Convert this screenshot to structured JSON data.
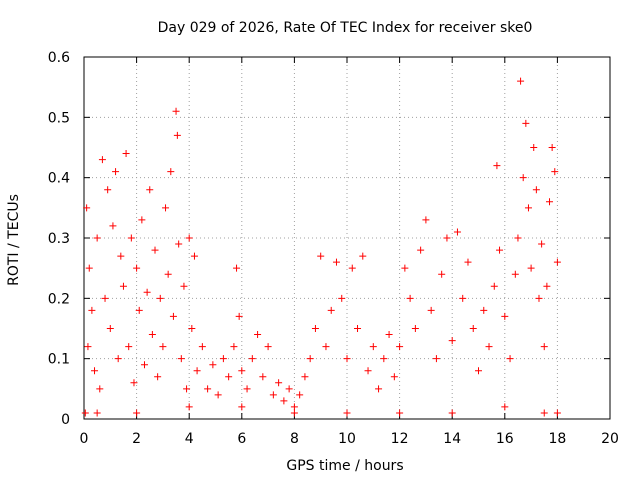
{
  "chart_data": {
    "type": "scatter",
    "title": "Day 029 of 2026, Rate Of TEC Index for receiver ske0",
    "xlabel": "GPS time / hours",
    "ylabel": "ROTI / TECUs",
    "xlim": [
      0,
      20
    ],
    "ylim": [
      0,
      0.6
    ],
    "xticks": [
      "0",
      "2",
      "4",
      "6",
      "8",
      "10",
      "12",
      "14",
      "16",
      "18",
      "20"
    ],
    "yticks": [
      "0",
      "0.1",
      "0.2",
      "0.3",
      "0.4",
      "0.5",
      "0.6"
    ],
    "grid": true,
    "marker": "plus",
    "color": "#ff0000",
    "points": [
      [
        0.05,
        0.01
      ],
      [
        0.1,
        0.35
      ],
      [
        0.15,
        0.12
      ],
      [
        0.2,
        0.25
      ],
      [
        0.3,
        0.18
      ],
      [
        0.4,
        0.08
      ],
      [
        0.5,
        0.3
      ],
      [
        0.6,
        0.05
      ],
      [
        0.7,
        0.43
      ],
      [
        0.8,
        0.2
      ],
      [
        0.9,
        0.38
      ],
      [
        1.0,
        0.15
      ],
      [
        1.1,
        0.32
      ],
      [
        1.2,
        0.41
      ],
      [
        1.3,
        0.1
      ],
      [
        1.4,
        0.27
      ],
      [
        1.5,
        0.22
      ],
      [
        1.6,
        0.44
      ],
      [
        1.7,
        0.12
      ],
      [
        1.8,
        0.3
      ],
      [
        1.9,
        0.06
      ],
      [
        2.0,
        0.25
      ],
      [
        2.1,
        0.18
      ],
      [
        2.2,
        0.33
      ],
      [
        2.3,
        0.09
      ],
      [
        2.4,
        0.21
      ],
      [
        2.5,
        0.38
      ],
      [
        2.6,
        0.14
      ],
      [
        2.7,
        0.28
      ],
      [
        2.8,
        0.07
      ],
      [
        2.9,
        0.2
      ],
      [
        3.0,
        0.12
      ],
      [
        3.1,
        0.35
      ],
      [
        3.2,
        0.24
      ],
      [
        3.3,
        0.41
      ],
      [
        3.4,
        0.17
      ],
      [
        3.5,
        0.51
      ],
      [
        3.55,
        0.47
      ],
      [
        3.6,
        0.29
      ],
      [
        3.7,
        0.1
      ],
      [
        3.8,
        0.22
      ],
      [
        3.9,
        0.05
      ],
      [
        4.0,
        0.3
      ],
      [
        4.1,
        0.15
      ],
      [
        4.2,
        0.27
      ],
      [
        4.3,
        0.08
      ],
      [
        4.5,
        0.12
      ],
      [
        4.7,
        0.05
      ],
      [
        4.9,
        0.09
      ],
      [
        5.1,
        0.04
      ],
      [
        5.3,
        0.1
      ],
      [
        5.5,
        0.07
      ],
      [
        5.7,
        0.12
      ],
      [
        5.8,
        0.25
      ],
      [
        5.9,
        0.17
      ],
      [
        6.0,
        0.08
      ],
      [
        6.2,
        0.05
      ],
      [
        6.4,
        0.1
      ],
      [
        6.6,
        0.14
      ],
      [
        6.8,
        0.07
      ],
      [
        7.0,
        0.12
      ],
      [
        7.2,
        0.04
      ],
      [
        7.4,
        0.06
      ],
      [
        7.6,
        0.03
      ],
      [
        7.8,
        0.05
      ],
      [
        8.0,
        0.02
      ],
      [
        8.2,
        0.04
      ],
      [
        8.4,
        0.07
      ],
      [
        8.6,
        0.1
      ],
      [
        8.8,
        0.15
      ],
      [
        9.0,
        0.27
      ],
      [
        9.2,
        0.12
      ],
      [
        9.4,
        0.18
      ],
      [
        9.6,
        0.26
      ],
      [
        9.8,
        0.2
      ],
      [
        10.0,
        0.1
      ],
      [
        10.2,
        0.25
      ],
      [
        10.4,
        0.15
      ],
      [
        10.6,
        0.27
      ],
      [
        10.8,
        0.08
      ],
      [
        11.0,
        0.12
      ],
      [
        11.2,
        0.05
      ],
      [
        11.4,
        0.1
      ],
      [
        11.6,
        0.14
      ],
      [
        11.8,
        0.07
      ],
      [
        12.0,
        0.12
      ],
      [
        12.2,
        0.25
      ],
      [
        12.4,
        0.2
      ],
      [
        12.6,
        0.15
      ],
      [
        12.8,
        0.28
      ],
      [
        13.0,
        0.33
      ],
      [
        13.2,
        0.18
      ],
      [
        13.4,
        0.1
      ],
      [
        13.6,
        0.24
      ],
      [
        13.8,
        0.3
      ],
      [
        14.0,
        0.13
      ],
      [
        14.2,
        0.31
      ],
      [
        14.4,
        0.2
      ],
      [
        14.6,
        0.26
      ],
      [
        14.8,
        0.15
      ],
      [
        15.0,
        0.08
      ],
      [
        15.2,
        0.18
      ],
      [
        15.4,
        0.12
      ],
      [
        15.6,
        0.22
      ],
      [
        15.7,
        0.42
      ],
      [
        15.8,
        0.28
      ],
      [
        16.0,
        0.17
      ],
      [
        16.2,
        0.1
      ],
      [
        16.4,
        0.24
      ],
      [
        16.5,
        0.3
      ],
      [
        16.6,
        0.56
      ],
      [
        16.7,
        0.4
      ],
      [
        16.8,
        0.49
      ],
      [
        16.9,
        0.35
      ],
      [
        17.0,
        0.25
      ],
      [
        17.1,
        0.45
      ],
      [
        17.2,
        0.38
      ],
      [
        17.3,
        0.2
      ],
      [
        17.4,
        0.29
      ],
      [
        17.5,
        0.12
      ],
      [
        17.6,
        0.22
      ],
      [
        17.7,
        0.36
      ],
      [
        17.8,
        0.45
      ],
      [
        17.9,
        0.41
      ],
      [
        18.0,
        0.26
      ],
      [
        18.0,
        0.01
      ],
      [
        17.5,
        0.01
      ],
      [
        16.0,
        0.02
      ],
      [
        14.0,
        0.01
      ],
      [
        12.0,
        0.01
      ],
      [
        10.0,
        0.01
      ],
      [
        8.0,
        0.01
      ],
      [
        6.0,
        0.02
      ],
      [
        4.0,
        0.02
      ],
      [
        2.0,
        0.01
      ],
      [
        0.5,
        0.01
      ]
    ]
  }
}
